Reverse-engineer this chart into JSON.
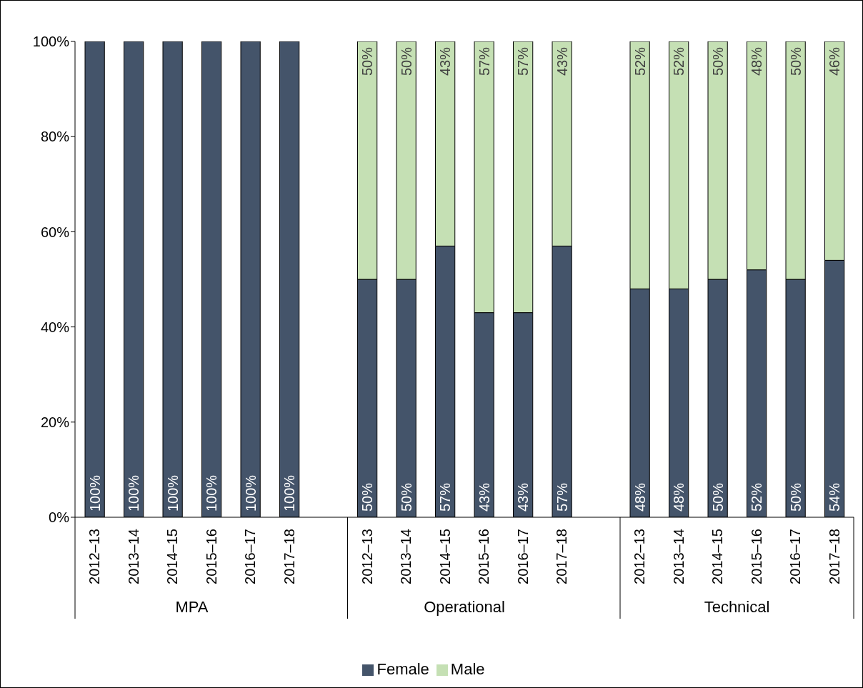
{
  "chart_data": {
    "type": "bar",
    "stacked": true,
    "categories": [
      "2012–13",
      "2013–14",
      "2014–15",
      "2015–16",
      "2016–17",
      "2017–18",
      null,
      "2012–13",
      "2013–14",
      "2014–15",
      "2015–16",
      "2016–17",
      "2017–18",
      null,
      "2012–13",
      "2013–14",
      "2014–15",
      "2015–16",
      "2016–17",
      "2017–18"
    ],
    "series": [
      {
        "name": "Female",
        "color": "#44546a",
        "values": [
          100,
          100,
          100,
          100,
          100,
          100,
          null,
          50,
          50,
          57,
          43,
          43,
          57,
          null,
          48,
          48,
          50,
          52,
          50,
          54
        ],
        "value_labels": [
          "100%",
          "100%",
          "100%",
          "100%",
          "100%",
          "100%",
          null,
          "50%",
          "50%",
          "57%",
          "43%",
          "43%",
          "57%",
          null,
          "48%",
          "48%",
          "50%",
          "52%",
          "50%",
          "54%"
        ]
      },
      {
        "name": "Male",
        "color": "#c5e0b4",
        "values": [
          0,
          0,
          0,
          0,
          0,
          0,
          null,
          50,
          50,
          43,
          57,
          57,
          43,
          null,
          52,
          52,
          50,
          48,
          50,
          46
        ],
        "value_labels": [
          null,
          null,
          null,
          null,
          null,
          null,
          null,
          "50%",
          "50%",
          "43%",
          "57%",
          "57%",
          "43%",
          null,
          "52%",
          "52%",
          "50%",
          "48%",
          "50%",
          "46%"
        ]
      }
    ],
    "annotations": [
      "MPA",
      "Operational",
      "Technical"
    ],
    "ylim": [
      0,
      100
    ],
    "yticks": [
      {
        "value": 0,
        "label": "0%"
      },
      {
        "value": 20,
        "label": "20%"
      },
      {
        "value": 40,
        "label": "40%"
      },
      {
        "value": 60,
        "label": "60%"
      },
      {
        "value": 80,
        "label": "80%"
      },
      {
        "value": 100,
        "label": "100%"
      }
    ],
    "legend": "bottom"
  }
}
